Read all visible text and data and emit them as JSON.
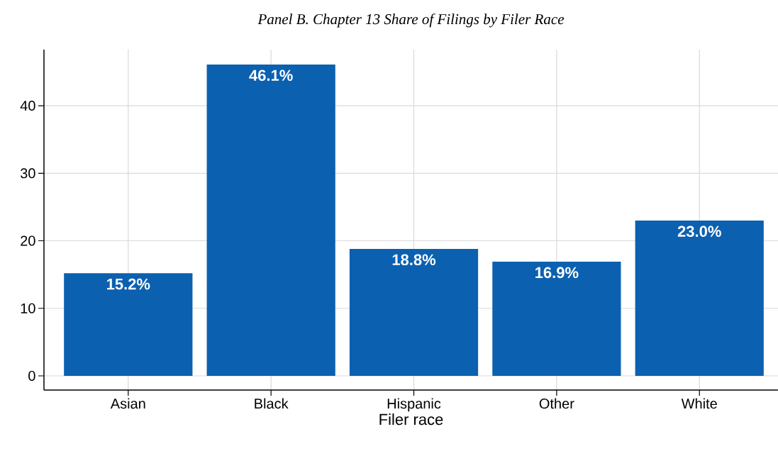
{
  "chart_data": {
    "type": "bar",
    "title": "Panel B. Chapter 13 Share of Filings by Filer Race",
    "xlabel": "Filer race",
    "categories": [
      "Asian",
      "Black",
      "Hispanic",
      "Other",
      "White"
    ],
    "values": [
      15.2,
      46.1,
      18.8,
      16.9,
      23.0
    ],
    "value_labels": [
      "15.2%",
      "46.1%",
      "18.8%",
      "16.9%",
      "23.0%"
    ],
    "color": "#0c60b0",
    "ylim": [
      -2.1,
      48.3
    ],
    "yticks": [
      0,
      10,
      20,
      30,
      40
    ],
    "grid": true
  }
}
